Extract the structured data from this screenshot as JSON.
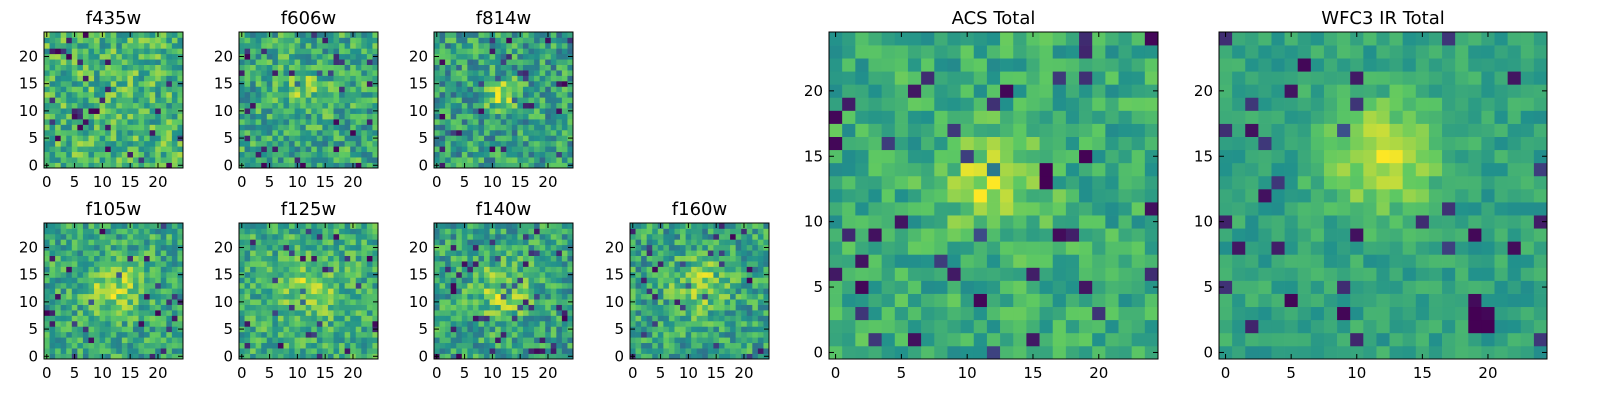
{
  "figure": {
    "colormap": "viridis",
    "colormap_stops": [
      "#440154",
      "#3b528b",
      "#21918c",
      "#5ec962",
      "#fde725"
    ]
  },
  "chart_data": [
    {
      "type": "heatmap",
      "title": "f435w",
      "grid": [
        25,
        25
      ],
      "xticks": [
        "0",
        "5",
        "10",
        "15",
        "20"
      ],
      "yticks": [
        "0",
        "5",
        "10",
        "15",
        "20"
      ],
      "xlim": [
        -0.5,
        24.5
      ],
      "ylim": [
        -0.5,
        24.5
      ],
      "value_range": [
        0,
        1
      ],
      "mean_level": 0.66,
      "noise": 0.22,
      "blob": null,
      "dark_spots": [],
      "seed": 11
    },
    {
      "type": "heatmap",
      "title": "f606w",
      "grid": [
        25,
        25
      ],
      "xticks": [
        "0",
        "5",
        "10",
        "15",
        "20"
      ],
      "yticks": [
        "0",
        "5",
        "10",
        "15",
        "20"
      ],
      "xlim": [
        -0.5,
        24.5
      ],
      "ylim": [
        -0.5,
        24.5
      ],
      "value_range": [
        0,
        1
      ],
      "mean_level": 0.6,
      "noise": 0.22,
      "blob": {
        "x": 11.5,
        "y": 14.5,
        "sigma": 2.5,
        "amp": 0.2
      },
      "dark_spots": [],
      "seed": 22
    },
    {
      "type": "heatmap",
      "title": "f814w",
      "grid": [
        25,
        25
      ],
      "xticks": [
        "0",
        "5",
        "10",
        "15",
        "20"
      ],
      "yticks": [
        "0",
        "5",
        "10",
        "15",
        "20"
      ],
      "xlim": [
        -0.5,
        24.5
      ],
      "ylim": [
        -0.5,
        24.5
      ],
      "value_range": [
        0,
        1
      ],
      "mean_level": 0.56,
      "noise": 0.23,
      "blob": {
        "x": 12,
        "y": 13,
        "sigma": 2.0,
        "amp": 0.32
      },
      "dark_spots": [],
      "seed": 33
    },
    {
      "type": "heatmap",
      "title": "f105w",
      "grid": [
        25,
        25
      ],
      "xticks": [
        "0",
        "5",
        "10",
        "15",
        "20"
      ],
      "yticks": [
        "0",
        "5",
        "10",
        "15",
        "20"
      ],
      "xlim": [
        -0.5,
        24.5
      ],
      "ylim": [
        -0.5,
        24.5
      ],
      "value_range": [
        0,
        1
      ],
      "mean_level": 0.6,
      "noise": 0.2,
      "blob": {
        "x": 12,
        "y": 13,
        "sigma": 3.5,
        "amp": 0.25
      },
      "dark_spots": [],
      "seed": 44
    },
    {
      "type": "heatmap",
      "title": "f125w",
      "grid": [
        25,
        25
      ],
      "xticks": [
        "0",
        "5",
        "10",
        "15",
        "20"
      ],
      "yticks": [
        "0",
        "5",
        "10",
        "15",
        "20"
      ],
      "xlim": [
        -0.5,
        24.5
      ],
      "ylim": [
        -0.5,
        24.5
      ],
      "value_range": [
        0,
        1
      ],
      "mean_level": 0.62,
      "noise": 0.19,
      "blob": {
        "x": 12,
        "y": 12,
        "sigma": 3.5,
        "amp": 0.22
      },
      "dark_spots": [],
      "seed": 55
    },
    {
      "type": "heatmap",
      "title": "f140w",
      "grid": [
        25,
        25
      ],
      "xticks": [
        "0",
        "5",
        "10",
        "15",
        "20"
      ],
      "yticks": [
        "0",
        "5",
        "10",
        "15",
        "20"
      ],
      "xlim": [
        -0.5,
        24.5
      ],
      "ylim": [
        -0.5,
        24.5
      ],
      "value_range": [
        0,
        1
      ],
      "mean_level": 0.58,
      "noise": 0.21,
      "blob": {
        "x": 12,
        "y": 12,
        "sigma": 3.5,
        "amp": 0.25
      },
      "dark_spots": [],
      "seed": 66
    },
    {
      "type": "heatmap",
      "title": "f160w",
      "grid": [
        25,
        25
      ],
      "xticks": [
        "0",
        "5",
        "10",
        "15",
        "20"
      ],
      "yticks": [
        "0",
        "5",
        "10",
        "15",
        "20"
      ],
      "xlim": [
        -0.5,
        24.5
      ],
      "ylim": [
        -0.5,
        24.5
      ],
      "value_range": [
        0,
        1
      ],
      "mean_level": 0.58,
      "noise": 0.21,
      "blob": {
        "x": 12,
        "y": 13,
        "sigma": 3.5,
        "amp": 0.25
      },
      "dark_spots": [],
      "seed": 77
    },
    {
      "type": "heatmap",
      "title": "ACS Total",
      "grid": [
        25,
        25
      ],
      "xticks": [
        "0",
        "5",
        "10",
        "15",
        "20"
      ],
      "yticks": [
        "0",
        "5",
        "10",
        "15",
        "20"
      ],
      "xlim": [
        -0.5,
        24.5
      ],
      "ylim": [
        -0.5,
        24.5
      ],
      "value_range": [
        0,
        1
      ],
      "mean_level": 0.62,
      "noise": 0.15,
      "blob": {
        "x": 12,
        "y": 13,
        "sigma": 2.5,
        "amp": 0.3
      },
      "dark_spots": [
        {
          "x": 16,
          "y": 13,
          "v": 0.0
        },
        {
          "x": 16,
          "y": 14,
          "v": 0.0
        },
        {
          "x": 0,
          "y": 16,
          "v": 0.02
        },
        {
          "x": 13,
          "y": 20,
          "v": 0.02
        },
        {
          "x": 2,
          "y": 5,
          "v": 0.02
        },
        {
          "x": 11,
          "y": 4,
          "v": 0.02
        },
        {
          "x": 3,
          "y": 9,
          "v": 0.05
        },
        {
          "x": 24,
          "y": 24,
          "v": 0.02
        }
      ],
      "seed": 88
    },
    {
      "type": "heatmap",
      "title": "WFC3 IR Total",
      "grid": [
        25,
        25
      ],
      "xticks": [
        "0",
        "5",
        "10",
        "15",
        "20"
      ],
      "yticks": [
        "0",
        "5",
        "10",
        "15",
        "20"
      ],
      "xlim": [
        -0.5,
        24.5
      ],
      "ylim": [
        -0.5,
        24.5
      ],
      "value_range": [
        0,
        1
      ],
      "mean_level": 0.58,
      "noise": 0.1,
      "blob": {
        "x": 12,
        "y": 15,
        "sigma": 3.0,
        "amp": 0.35
      },
      "dark_spots": [
        {
          "x": 19,
          "y": 2,
          "v": 0.0
        },
        {
          "x": 19,
          "y": 3,
          "v": 0.0
        },
        {
          "x": 20,
          "y": 2,
          "v": 0.0
        },
        {
          "x": 20,
          "y": 3,
          "v": 0.02
        },
        {
          "x": 19,
          "y": 4,
          "v": 0.03
        },
        {
          "x": 3,
          "y": 12,
          "v": 0.05
        },
        {
          "x": 6,
          "y": 22,
          "v": 0.02
        },
        {
          "x": 10,
          "y": 9,
          "v": 0.05
        },
        {
          "x": 0,
          "y": 10,
          "v": 0.1
        }
      ],
      "seed": 99
    }
  ]
}
